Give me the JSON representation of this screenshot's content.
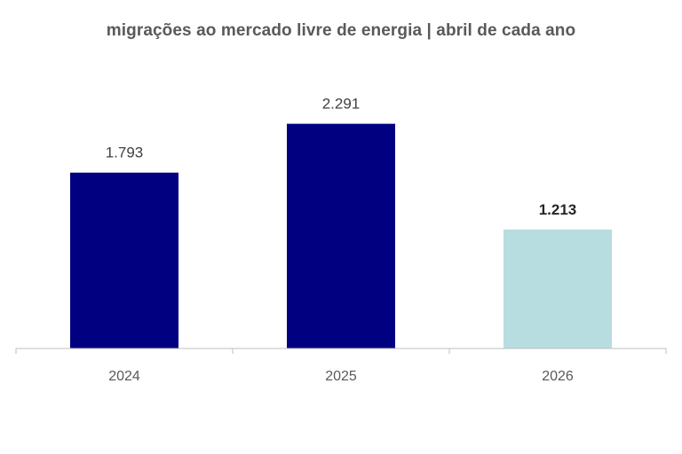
{
  "chart_data": {
    "type": "bar",
    "title": "migrações ao mercado livre de energia | abril de cada ano",
    "categories": [
      "2024",
      "2025",
      "2026"
    ],
    "values": [
      1793,
      2291,
      1213
    ],
    "value_labels": [
      "1.793",
      "2.291",
      "1.213"
    ],
    "bar_colors": [
      "#000080",
      "#000080",
      "#b7dde0"
    ],
    "emphasized_label_index": 2,
    "ylim": [
      0,
      2750
    ],
    "xlabel": "",
    "ylabel": "",
    "grid": false,
    "axis_color": "#bfbfbf"
  }
}
